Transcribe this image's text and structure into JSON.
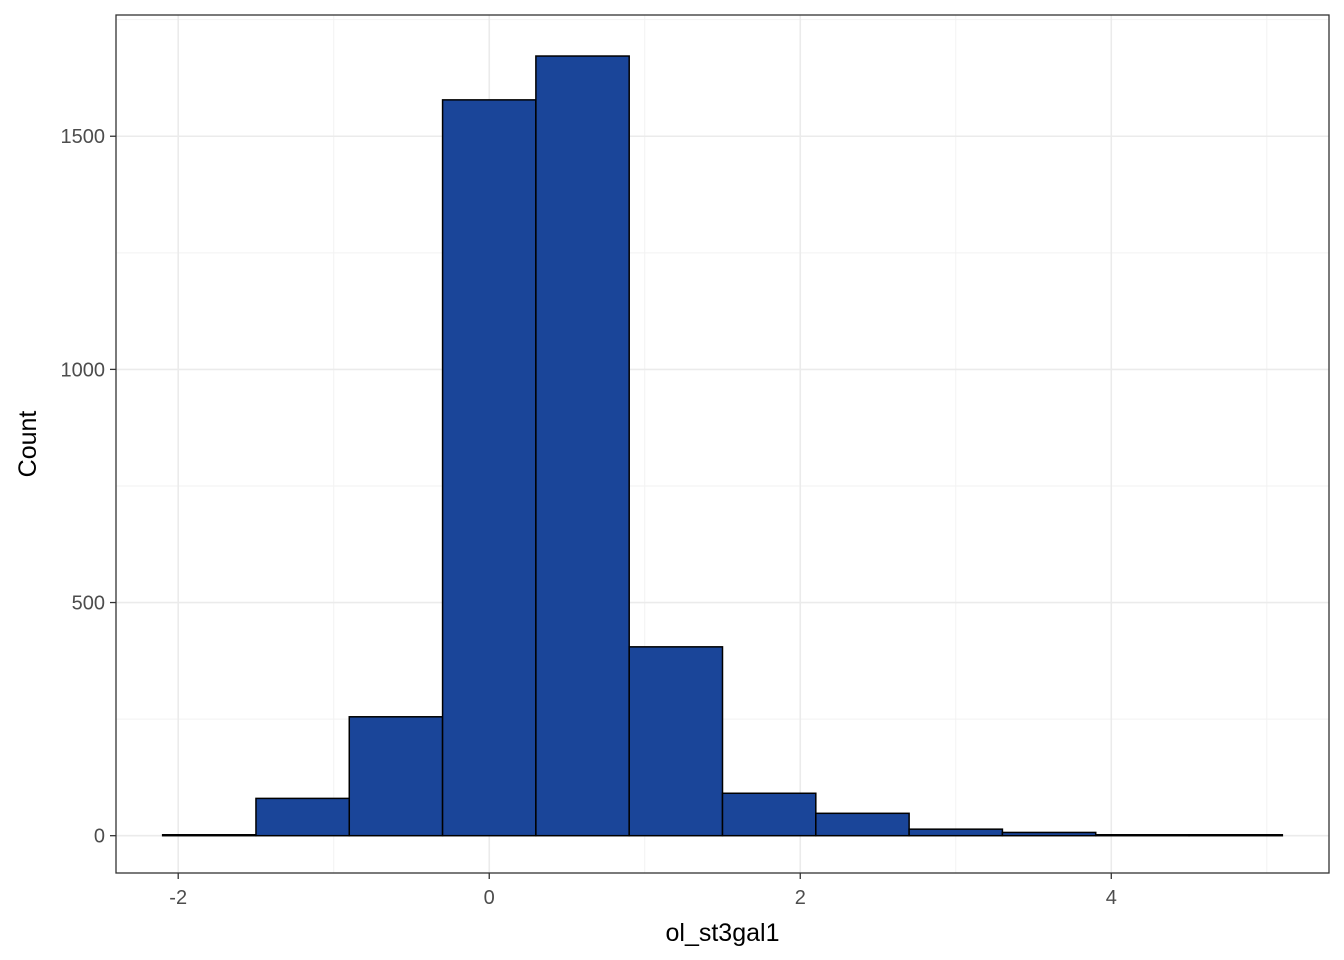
{
  "chart_data": {
    "type": "bar",
    "subtype": "histogram",
    "xlabel": "ol_st3gal1",
    "ylabel": "Count",
    "xlim": [
      -2.4,
      5.4
    ],
    "ylim": [
      -80,
      1760
    ],
    "x_major_ticks": [
      -2,
      0,
      2,
      4
    ],
    "x_tick_labels": [
      "-2",
      "0",
      "2",
      "4"
    ],
    "x_minor_ticks": [
      -1,
      1,
      3,
      5
    ],
    "y_major_ticks": [
      0,
      500,
      1000,
      1500
    ],
    "y_tick_labels": [
      "0",
      "500",
      "1000",
      "1500"
    ],
    "y_minor_ticks": [
      250,
      750,
      1250,
      1750
    ],
    "grid": true,
    "theme": "bw",
    "bar_fill": "#1a4599",
    "bar_outline": "#000000",
    "bins": [
      {
        "x0": -2.1,
        "x1": -1.5,
        "count": 2
      },
      {
        "x0": -1.5,
        "x1": -0.9,
        "count": 80
      },
      {
        "x0": -0.9,
        "x1": -0.3,
        "count": 255
      },
      {
        "x0": -0.3,
        "x1": 0.3,
        "count": 1578
      },
      {
        "x0": 0.3,
        "x1": 0.9,
        "count": 1672
      },
      {
        "x0": 0.9,
        "x1": 1.5,
        "count": 405
      },
      {
        "x0": 1.5,
        "x1": 2.1,
        "count": 91
      },
      {
        "x0": 2.1,
        "x1": 2.7,
        "count": 48
      },
      {
        "x0": 2.7,
        "x1": 3.3,
        "count": 14
      },
      {
        "x0": 3.3,
        "x1": 3.9,
        "count": 7
      },
      {
        "x0": 3.9,
        "x1": 4.5,
        "count": 2
      },
      {
        "x0": 4.5,
        "x1": 5.1,
        "count": 2
      }
    ]
  }
}
